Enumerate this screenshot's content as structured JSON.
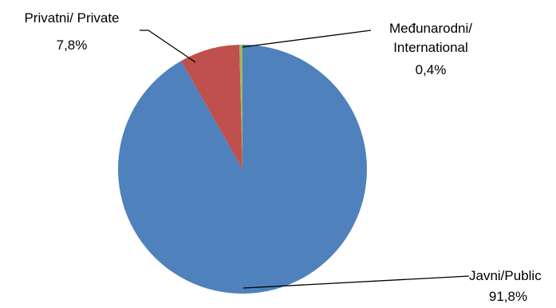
{
  "chart_data": {
    "type": "pie",
    "slices": [
      {
        "id": "public",
        "name": "Javni/Public",
        "value": 91.8,
        "value_label": "91,8%",
        "color": "#4F81BD"
      },
      {
        "id": "private",
        "name": "Privatni/ Private",
        "value": 7.8,
        "value_label": "7,8%",
        "color": "#C0504D"
      },
      {
        "id": "international",
        "name_lines": [
          "Međunarodni/",
          "International"
        ],
        "value": 0.4,
        "value_label": "0,4%",
        "color": "#9BBB59"
      }
    ],
    "legend": "none",
    "start_angle": "12 o'clock",
    "direction": "clockwise"
  }
}
